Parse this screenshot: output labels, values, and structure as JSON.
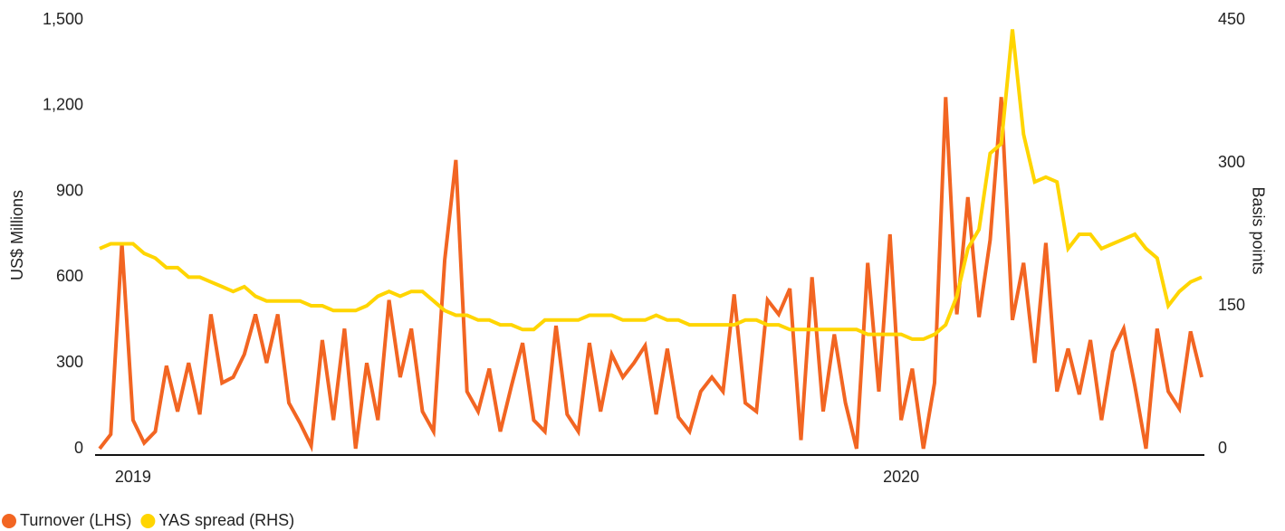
{
  "chart_data": {
    "type": "line",
    "ylabel": "US$ Millions",
    "y2label": "Basis points",
    "categories": [
      null,
      null,
      null,
      "2019",
      null,
      null,
      null,
      null,
      null,
      null,
      null,
      null,
      null,
      null,
      null,
      null,
      null,
      null,
      null,
      null,
      null,
      null,
      null,
      null,
      null,
      null,
      null,
      null,
      null,
      null,
      null,
      null,
      null,
      null,
      null,
      null,
      null,
      null,
      null,
      null,
      null,
      null,
      null,
      null,
      null,
      null,
      null,
      null,
      null,
      null,
      null,
      null,
      null,
      null,
      null,
      null,
      null,
      null,
      null,
      null,
      null,
      null,
      null,
      null,
      null,
      null,
      null,
      null,
      null,
      null,
      null,
      null,
      "2020",
      null,
      null,
      null,
      null,
      null,
      null,
      null,
      null,
      null,
      null,
      null,
      null,
      null,
      null,
      null,
      null,
      null,
      null,
      null,
      null,
      null,
      null,
      null,
      null,
      null,
      null,
      null
    ],
    "series": [
      {
        "name": "Turnover (LHS)",
        "color": "#f26522",
        "axis": "y",
        "values": [
          0,
          50,
          720,
          100,
          20,
          60,
          290,
          130,
          300,
          120,
          470,
          230,
          250,
          330,
          470,
          300,
          470,
          160,
          90,
          10,
          380,
          100,
          420,
          0,
          300,
          100,
          520,
          250,
          420,
          130,
          60,
          660,
          1010,
          200,
          130,
          280,
          60,
          220,
          370,
          100,
          60,
          430,
          120,
          60,
          370,
          130,
          330,
          250,
          300,
          360,
          120,
          350,
          110,
          60,
          200,
          250,
          200,
          540,
          160,
          130,
          520,
          470,
          560,
          30,
          600,
          130,
          400,
          160,
          0,
          650,
          200,
          750,
          100,
          280,
          0,
          230,
          1230,
          470,
          880,
          460,
          730,
          1230,
          450,
          650,
          300,
          720,
          200,
          350,
          190,
          380,
          100,
          340,
          420,
          220,
          0,
          420,
          200,
          140,
          410,
          250
        ]
      },
      {
        "name": "YAS spread (RHS)",
        "color": "#ffd500",
        "axis": "y2",
        "values": [
          210,
          215,
          215,
          215,
          205,
          200,
          190,
          190,
          180,
          180,
          175,
          170,
          165,
          170,
          160,
          155,
          155,
          155,
          155,
          150,
          150,
          145,
          145,
          145,
          150,
          160,
          165,
          160,
          165,
          165,
          155,
          145,
          140,
          140,
          135,
          135,
          130,
          130,
          125,
          125,
          135,
          135,
          135,
          135,
          140,
          140,
          140,
          135,
          135,
          135,
          140,
          135,
          135,
          130,
          130,
          130,
          130,
          130,
          135,
          135,
          130,
          130,
          125,
          125,
          125,
          125,
          125,
          125,
          125,
          120,
          120,
          120,
          120,
          115,
          115,
          120,
          130,
          160,
          210,
          230,
          310,
          320,
          440,
          330,
          280,
          285,
          280,
          210,
          225,
          225,
          210,
          215,
          220,
          225,
          210,
          200,
          150,
          165,
          175,
          180
        ]
      }
    ],
    "ylim": [
      0,
      1500
    ],
    "yticks": [
      0,
      300,
      600,
      900,
      {
        "value": 1200,
        "label": "1,200"
      },
      {
        "value": 1500,
        "label": "1,500"
      }
    ],
    "y2lim": [
      0,
      450
    ],
    "y2ticks": [
      0,
      150,
      300,
      450
    ],
    "grid": false,
    "legend": "bottom-left"
  }
}
